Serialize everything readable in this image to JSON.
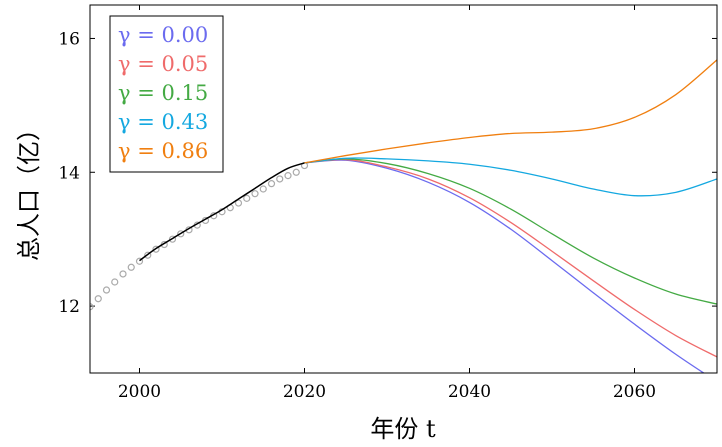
{
  "chart_data": {
    "type": "line",
    "xlabel": "年份 t",
    "ylabel": "总人口（亿）",
    "xlim": [
      1994,
      2070
    ],
    "ylim": [
      11,
      16.5
    ],
    "x_ticks": [
      2000,
      2020,
      2040,
      2060
    ],
    "y_ticks": [
      12,
      14,
      16
    ],
    "legend_position": "top-left",
    "observed": {
      "style": "gray hollow circles",
      "x": [
        1994,
        1995,
        1996,
        1997,
        1998,
        1999,
        2000,
        2001,
        2002,
        2003,
        2004,
        2005,
        2006,
        2007,
        2008,
        2009,
        2010,
        2011,
        2012,
        2013,
        2014,
        2015,
        2016,
        2017,
        2018,
        2019,
        2020
      ],
      "y": [
        11.99,
        12.11,
        12.24,
        12.36,
        12.48,
        12.58,
        12.67,
        12.76,
        12.85,
        12.92,
        13.0,
        13.08,
        13.14,
        13.21,
        13.28,
        13.35,
        13.41,
        13.47,
        13.54,
        13.61,
        13.68,
        13.75,
        13.83,
        13.9,
        13.95,
        14.0,
        14.1
      ]
    },
    "fitted": {
      "color": "#000000",
      "x": [
        2000,
        2002,
        2004,
        2006,
        2008,
        2010,
        2012,
        2014,
        2016,
        2018,
        2020
      ],
      "y": [
        12.68,
        12.86,
        13.01,
        13.16,
        13.3,
        13.44,
        13.6,
        13.76,
        13.92,
        14.06,
        14.14
      ]
    },
    "series": [
      {
        "name": "γ = 0.00",
        "color": "#6b6bef",
        "x": [
          2020,
          2025,
          2030,
          2035,
          2040,
          2045,
          2050,
          2055,
          2060,
          2065,
          2069
        ],
        "y": [
          14.14,
          14.18,
          14.06,
          13.85,
          13.55,
          13.15,
          12.68,
          12.2,
          11.73,
          11.28,
          10.95
        ]
      },
      {
        "name": "γ = 0.05",
        "color": "#ef6b6b",
        "x": [
          2020,
          2025,
          2030,
          2035,
          2040,
          2045,
          2050,
          2055,
          2060,
          2065,
          2070
        ],
        "y": [
          14.14,
          14.19,
          14.08,
          13.9,
          13.62,
          13.25,
          12.82,
          12.38,
          11.95,
          11.56,
          11.24
        ]
      },
      {
        "name": "γ = 0.15",
        "color": "#44aa44",
        "x": [
          2020,
          2025,
          2030,
          2035,
          2040,
          2045,
          2050,
          2055,
          2060,
          2065,
          2070
        ],
        "y": [
          14.14,
          14.2,
          14.13,
          13.98,
          13.76,
          13.45,
          13.08,
          12.72,
          12.42,
          12.18,
          12.03
        ]
      },
      {
        "name": "γ = 0.43",
        "color": "#14a8e0",
        "x": [
          2020,
          2025,
          2030,
          2035,
          2040,
          2045,
          2050,
          2055,
          2060,
          2065,
          2070
        ],
        "y": [
          14.14,
          14.21,
          14.2,
          14.17,
          14.12,
          14.03,
          13.9,
          13.75,
          13.65,
          13.7,
          13.9
        ]
      },
      {
        "name": "γ = 0.86",
        "color": "#f07f10",
        "x": [
          2020,
          2025,
          2030,
          2035,
          2040,
          2045,
          2050,
          2055,
          2060,
          2065,
          2070
        ],
        "y": [
          14.14,
          14.25,
          14.35,
          14.44,
          14.52,
          14.58,
          14.6,
          14.65,
          14.82,
          15.16,
          15.68
        ]
      }
    ]
  }
}
